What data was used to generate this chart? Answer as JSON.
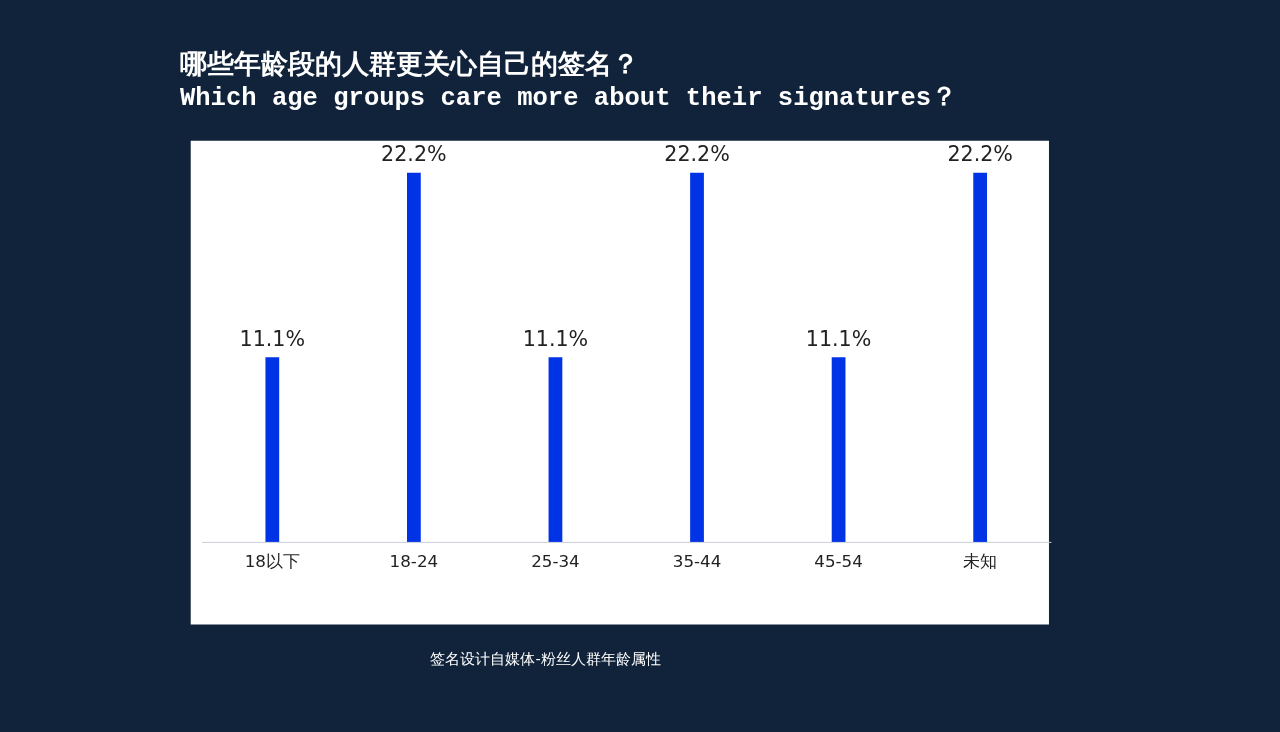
{
  "chart_data": {
    "type": "bar",
    "title": "哪些年龄段的人群更关心自己的签名？",
    "subtitle": "Which age groups care more about their signatures？",
    "categories": [
      "18以下",
      "18-24",
      "25-34",
      "35-44",
      "45-54",
      "未知"
    ],
    "values": [
      11.1,
      22.2,
      11.1,
      22.2,
      11.1,
      22.2
    ],
    "value_labels": [
      "11.1%",
      "22.2%",
      "11.1%",
      "22.2%",
      "11.1%",
      "22.2%"
    ],
    "color": "#0033e6",
    "grid": false,
    "annotations": [
      "签名设计自媒体-粉丝人群年龄属性"
    ]
  }
}
